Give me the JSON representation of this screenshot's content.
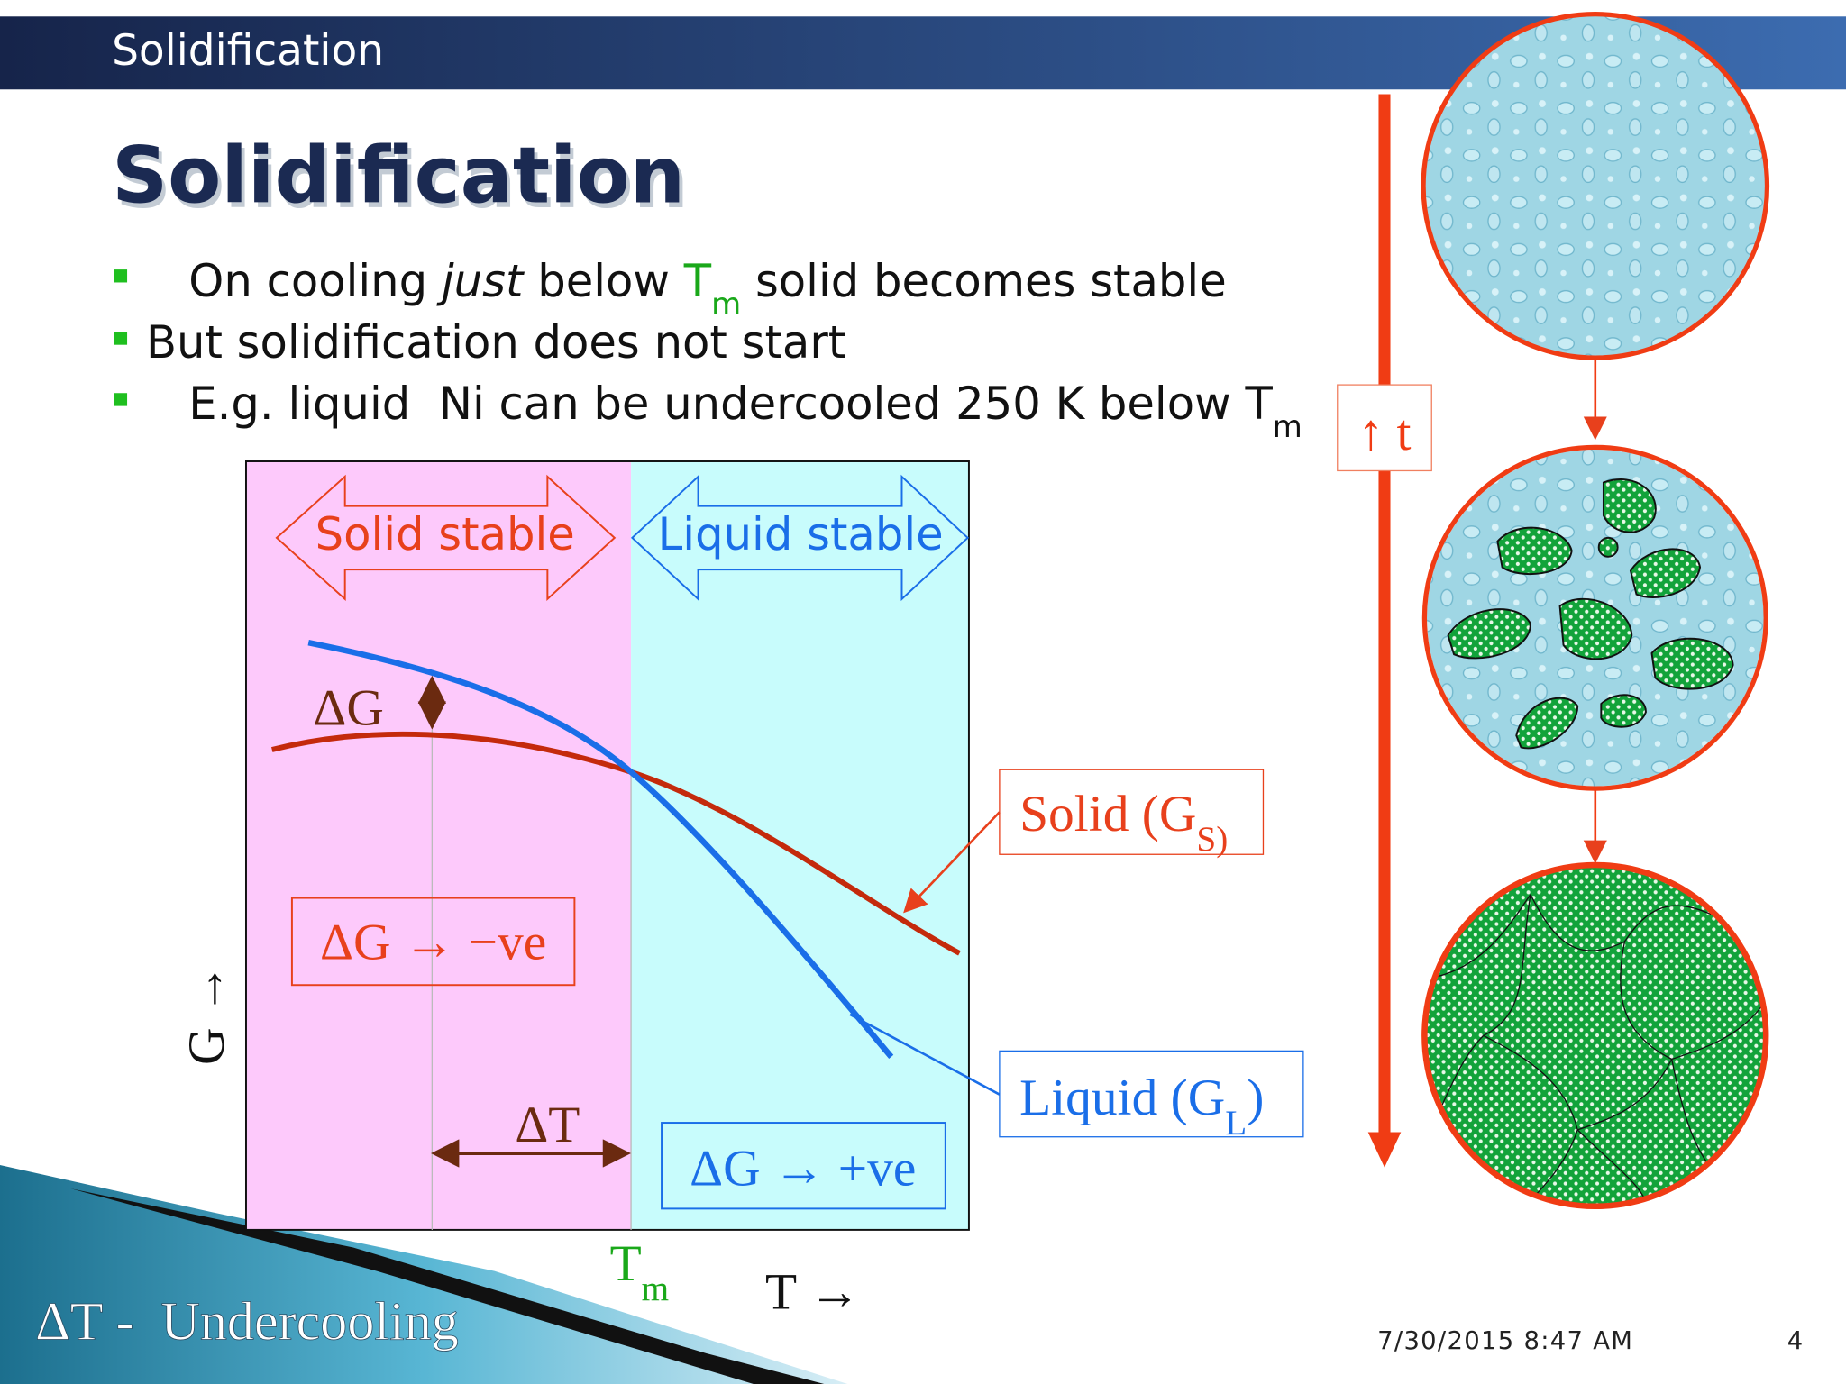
{
  "header": {
    "title": "Solidification"
  },
  "slide": {
    "title": "Solidification"
  },
  "bullets": [
    [
      "On cooling ",
      "just",
      " below ",
      "T",
      "m",
      " solid becomes stable"
    ],
    [
      "But solidification does not start"
    ],
    [
      "E.g. liquid  Ni can be undercooled 250 K below ",
      "T",
      "m"
    ]
  ],
  "diagram": {
    "solid_stable": "Solid stable",
    "liquid_stable": "Liquid stable",
    "delta_g": "ΔG",
    "delta_g_negative": "ΔG → −ve",
    "delta_t": "ΔT",
    "delta_g_positive": "ΔG → +ve",
    "solid_label": [
      "Solid (G",
      "S)"
    ],
    "liquid_label": [
      "Liquid (G",
      "L",
      ")"
    ],
    "g_axis": "G →",
    "t_axis": "T →",
    "tm": [
      "T",
      "m"
    ],
    "time": "↑ t",
    "undercooling": "ΔT -  Undercooling"
  },
  "footer": {
    "date": "7/30/2015 8:47 AM",
    "page": "4"
  }
}
